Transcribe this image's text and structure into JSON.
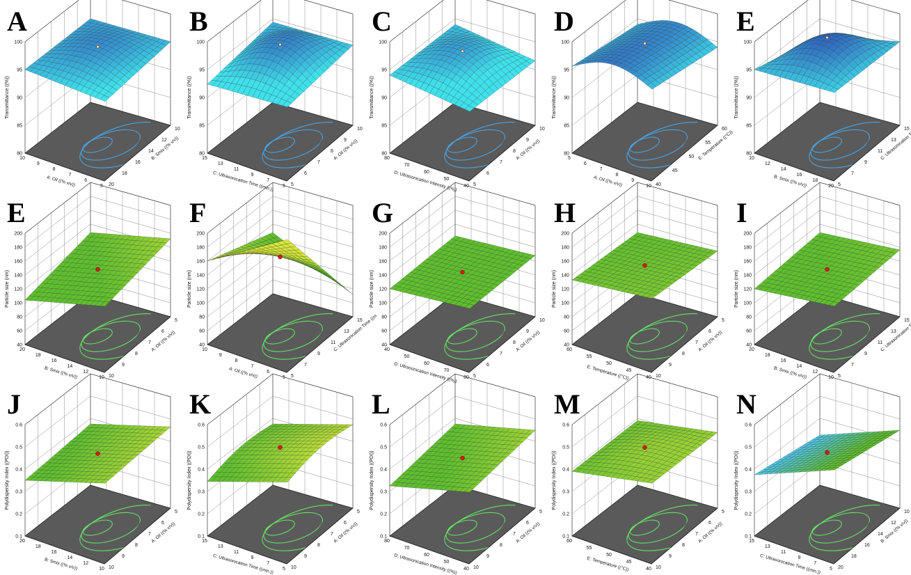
{
  "figure": {
    "rows": [
      {
        "surface_style": "blue",
        "letters": [
          "A",
          "B",
          "C",
          "D",
          "E"
        ]
      },
      {
        "surface_style": "green",
        "letters": [
          "E",
          "F",
          "G",
          "H",
          "I"
        ]
      },
      {
        "surface_style": "green",
        "letters": [
          "J",
          "K",
          "L",
          "M",
          "N"
        ]
      }
    ],
    "colors": {
      "blue_surface": "#3a64c4",
      "blue_light": "#3fe0ea",
      "green_surface": "#5fbf2f",
      "green_light": "#d8e63c",
      "floor": "#5a5a5a",
      "contour": "#64e064",
      "contour_blue": "#46a4e8",
      "center_point": "#d21c1c"
    }
  },
  "chart_data": [
    {
      "letter": "A",
      "type": "surface",
      "zlabel": "Transmittance ((%))",
      "xlabel": "A: Oil ((% v/v))",
      "ylabel": "B: Smix ((% v/v))",
      "zticks": [
        "80",
        "85",
        "90",
        "95",
        "100"
      ],
      "xticks": [
        "10",
        "9",
        "8",
        "7",
        "6",
        "5"
      ],
      "yticks": [
        "20",
        "18",
        "16",
        "14",
        "12",
        "10"
      ],
      "surface_style": "blue"
    },
    {
      "letter": "B",
      "type": "surface",
      "zlabel": "Transmittance ((%))",
      "xlabel": "C: Ultrasonication Time ((min.))",
      "ylabel": "A: Oil ((% v/v))",
      "zticks": [
        "80",
        "85",
        "90",
        "95",
        "100"
      ],
      "xticks": [
        "15",
        "13",
        "11",
        "9",
        "7",
        "5"
      ],
      "yticks": [
        "5",
        "6",
        "7",
        "8",
        "9",
        "10"
      ],
      "surface_style": "blue"
    },
    {
      "letter": "C",
      "type": "surface",
      "zlabel": "Transmittance ((%))",
      "xlabel": "D: Ultrasonication Intensity ((%))",
      "ylabel": "A: Oil ((% v/v))",
      "zticks": [
        "80",
        "85",
        "90",
        "95",
        "100"
      ],
      "xticks": [
        "80",
        "70",
        "60",
        "50",
        "40"
      ],
      "yticks": [
        "5",
        "6",
        "7",
        "8",
        "9",
        "10"
      ],
      "surface_style": "blue"
    },
    {
      "letter": "D",
      "type": "surface",
      "zlabel": "Transmittance ((%))",
      "xlabel": "A: Oil ((% v/v))",
      "ylabel": "E: Temperature ((°C))",
      "zticks": [
        "80",
        "85",
        "90",
        "95",
        "100"
      ],
      "xticks": [
        "5",
        "6",
        "7",
        "8",
        "9",
        "10"
      ],
      "yticks": [
        "40",
        "45",
        "50",
        "55",
        "60"
      ],
      "surface_style": "blue"
    },
    {
      "letter": "E",
      "type": "surface",
      "zlabel": "Transmittance ((%))",
      "xlabel": "B: Smix ((% v/v))",
      "ylabel": "C: Ultrasonication Time ((min.))",
      "zticks": [
        "80",
        "85",
        "90",
        "95",
        "100"
      ],
      "xticks": [
        "10",
        "12",
        "14",
        "16",
        "18",
        "20"
      ],
      "yticks": [
        "5",
        "7",
        "9",
        "11",
        "13",
        "15"
      ],
      "surface_style": "blue"
    },
    {
      "letter": "E",
      "type": "surface",
      "zlabel": "Particle size (nm)",
      "xlabel": "B: Smix ((% v/v))",
      "ylabel": "A: Oil ((% v/v))",
      "zticks": [
        "40",
        "60",
        "80",
        "100",
        "120",
        "140",
        "160",
        "180",
        "200"
      ],
      "xticks": [
        "20",
        "18",
        "16",
        "14",
        "12",
        "10"
      ],
      "yticks": [
        "10",
        "9",
        "8",
        "7",
        "6",
        "5"
      ],
      "surface_style": "green"
    },
    {
      "letter": "F",
      "type": "surface",
      "zlabel": "Particle size (nm)",
      "xlabel": "A: Oil ((% v/v))",
      "ylabel": "C: Ultrasonication Time ((m",
      "zticks": [
        "40",
        "60",
        "80",
        "100",
        "120",
        "140",
        "160",
        "180",
        "200"
      ],
      "xticks": [
        "10",
        "9",
        "8",
        "7",
        "6",
        "5"
      ],
      "yticks": [
        "5",
        "7",
        "9",
        "11",
        "13",
        "15"
      ],
      "surface_style": "green"
    },
    {
      "letter": "G",
      "type": "surface",
      "zlabel": "Particle size (nm)",
      "xlabel": "D: Ultrasonication Intensity ((%))",
      "ylabel": "A: Oil ((% v/v))",
      "zticks": [
        "40",
        "60",
        "80",
        "100",
        "120",
        "140",
        "160",
        "180",
        "200"
      ],
      "xticks": [
        "40",
        "50",
        "60",
        "70",
        "80"
      ],
      "yticks": [
        "5",
        "6",
        "7",
        "8",
        "9",
        "10"
      ],
      "surface_style": "green"
    },
    {
      "letter": "H",
      "type": "surface",
      "zlabel": "Particle size (nm)",
      "xlabel": "E: Temperature ((°C))",
      "ylabel": "A: Oil ((% v/v))",
      "zticks": [
        "40",
        "60",
        "80",
        "100",
        "120",
        "140",
        "160",
        "180",
        "200"
      ],
      "xticks": [
        "60",
        "55",
        "50",
        "45",
        "40"
      ],
      "yticks": [
        "10",
        "9",
        "8",
        "7",
        "6",
        "5"
      ],
      "surface_style": "green"
    },
    {
      "letter": "I",
      "type": "surface",
      "zlabel": "Particle size (nm)",
      "xlabel": "B: Smix ((% v/v))",
      "ylabel": "C: Ultrasonication Time ((min.))",
      "zticks": [
        "40",
        "60",
        "80",
        "100",
        "120",
        "140",
        "160",
        "180",
        "200"
      ],
      "xticks": [
        "20",
        "18",
        "16",
        "14",
        "12",
        "10"
      ],
      "yticks": [
        "5",
        "7",
        "9",
        "11",
        "13",
        "15"
      ],
      "surface_style": "green"
    },
    {
      "letter": "J",
      "type": "surface",
      "zlabel": "Polydispersity Index ((PDI))",
      "xlabel": "B: Smix ((% v/v))",
      "ylabel": "A: Oil ((% v/v))",
      "zticks": [
        "0.1",
        "0.2",
        "0.3",
        "0.4",
        "0.5",
        "0.6"
      ],
      "xticks": [
        "20",
        "18",
        "16",
        "14",
        "12",
        "10"
      ],
      "yticks": [
        "10",
        "9",
        "8",
        "7",
        "6",
        "5"
      ],
      "surface_style": "green"
    },
    {
      "letter": "K",
      "type": "surface",
      "zlabel": "Polydispersity Index ((PDI))",
      "xlabel": "C: Ultrasonication Time ((min.))",
      "ylabel": "A: Oil ((% v/v))",
      "zticks": [
        "0.1",
        "0.2",
        "0.3",
        "0.4",
        "0.5",
        "0.6"
      ],
      "xticks": [
        "15",
        "13",
        "11",
        "9",
        "7",
        "5"
      ],
      "yticks": [
        "10",
        "9",
        "8",
        "7",
        "6",
        "5"
      ],
      "surface_style": "green"
    },
    {
      "letter": "L",
      "type": "surface",
      "zlabel": "Polydispersity Index ((PDI))",
      "xlabel": "D: Ultrasonication Intensity ((%))",
      "ylabel": "A: Oil ((% v/v))",
      "zticks": [
        "0.1",
        "0.2",
        "0.3",
        "0.4",
        "0.5",
        "0.6"
      ],
      "xticks": [
        "80",
        "70",
        "60",
        "50",
        "40"
      ],
      "yticks": [
        "10",
        "9",
        "8",
        "7",
        "6",
        "5"
      ],
      "surface_style": "green"
    },
    {
      "letter": "M",
      "type": "surface",
      "zlabel": "Polydispersity Index ((PDI))",
      "xlabel": "E: Temperature ((°C))",
      "ylabel": "A: Oil ((% v/v))",
      "zticks": [
        "0.1",
        "0.2",
        "0.3",
        "0.4",
        "0.5",
        "0.6"
      ],
      "xticks": [
        "60",
        "55",
        "50",
        "45",
        "40"
      ],
      "yticks": [
        "10",
        "9",
        "8",
        "7",
        "6",
        "5"
      ],
      "surface_style": "green"
    },
    {
      "letter": "N",
      "type": "surface",
      "zlabel": "Polydispersity Index ((PDI))",
      "xlabel": "C: Ultrasonication Time ((min.))",
      "ylabel": "B: Smix ((% v/v))",
      "zticks": [
        "0.1",
        "0.2",
        "0.3",
        "0.4",
        "0.5",
        "0.6"
      ],
      "xticks": [
        "15",
        "13",
        "11",
        "9",
        "7",
        "5"
      ],
      "yticks": [
        "20",
        "18",
        "16",
        "14",
        "12",
        "10"
      ],
      "surface_style": "green-blue"
    }
  ]
}
